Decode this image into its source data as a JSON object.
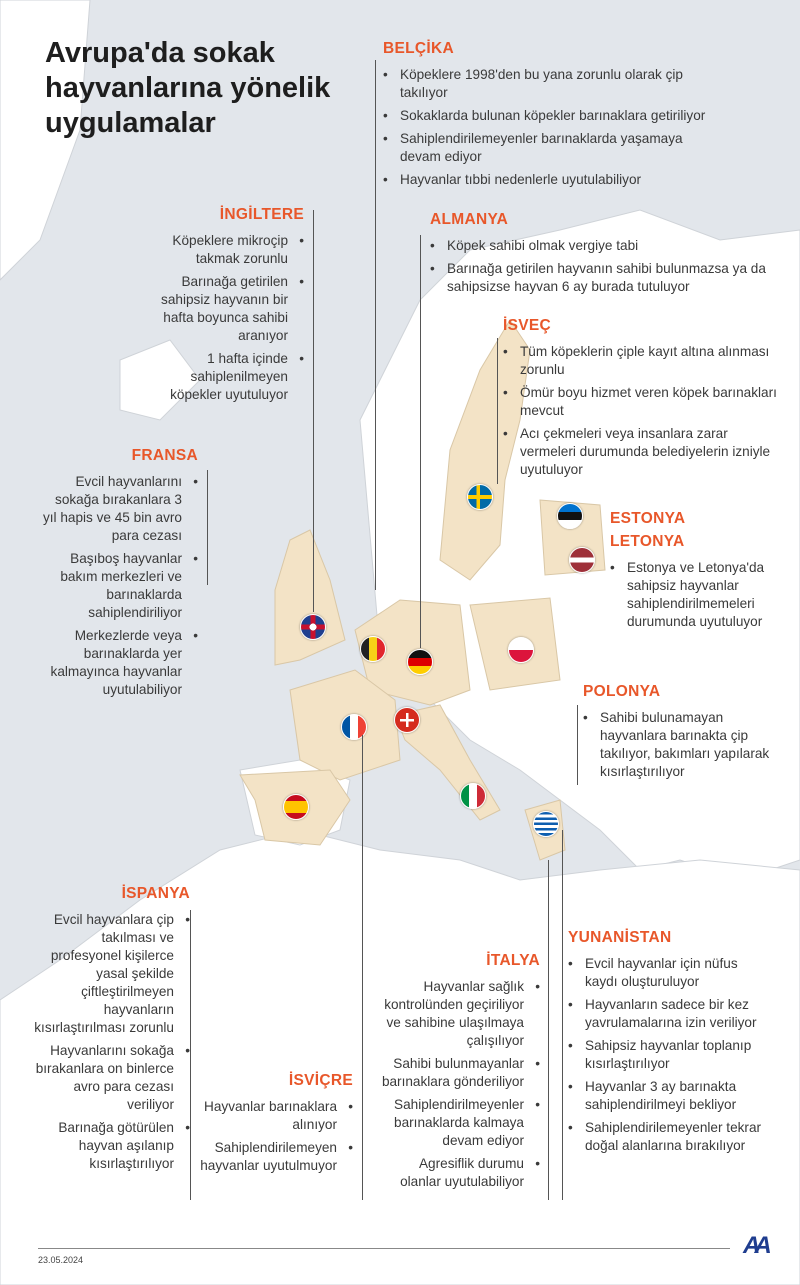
{
  "title": "Avrupa'da sokak hayvanlarına yönelik uygulamalar",
  "colors": {
    "heading": "#e8572a",
    "sea": "#e2e6eb",
    "land": "#ffffff",
    "highlight": "#f3e3c6"
  },
  "countries": [
    {
      "name": "BELÇİKA",
      "flag": "belgium",
      "items": [
        "Köpeklere 1998'den bu yana zorunlu olarak çip takılıyor",
        "Sokaklarda bulunan köpekler barınaklara getiriliyor",
        "Sahiplendirilemeyenler barınaklarda yaşamaya devam ediyor",
        "Hayvanlar tıbbi nedenlerle uyutulabiliyor"
      ]
    },
    {
      "name": "İNGİLTERE",
      "flag": "uk",
      "items": [
        "Köpeklere mikroçip takmak zorunlu",
        "Barınağa getirilen sahipsiz hayvanın bir hafta boyunca sahibi aranıyor",
        "1 hafta içinde sahiplenilmeyen köpekler uyutuluyor"
      ]
    },
    {
      "name": "ALMANYA",
      "flag": "germany",
      "items": [
        "Köpek sahibi olmak vergiye tabi",
        "Barınağa getirilen hayvanın sahibi bulunmazsa ya da sahipsizse hayvan 6 ay burada tutuluyor"
      ]
    },
    {
      "name": "İSVEÇ",
      "flag": "sweden",
      "items": [
        "Tüm köpeklerin çiple kayıt altına alınması zorunlu",
        "Ömür boyu hizmet veren köpek barınakları mevcut",
        "Acı çekmeleri veya insanlara zarar vermeleri durumunda belediyelerin izniyle uyutuluyor"
      ]
    },
    {
      "name": "ESTONYA",
      "flag": "estonia",
      "items": []
    },
    {
      "name": "LETONYA",
      "flag": "latvia",
      "items": [
        "Estonya ve Letonya'da sahipsiz hayvanlar sahiplendirilmemeleri durumunda uyutuluyor"
      ]
    },
    {
      "name": "FRANSA",
      "flag": "france",
      "items": [
        "Evcil hayvanlarını sokağa bırakanlara 3 yıl hapis ve 45 bin avro para cezası",
        "Başıboş hayvanlar bakım merkezleri ve barınaklarda sahiplendiriliyor",
        "Merkezlerde veya barınaklarda yer kalmayınca hayvanlar uyutulabiliyor"
      ]
    },
    {
      "name": "POLONYA",
      "flag": "poland",
      "items": [
        "Sahibi bulunamayan hayvanlara barınakta çip takılıyor, bakımları yapılarak kısırlaştırılıyor"
      ]
    },
    {
      "name": "İSPANYA",
      "flag": "spain",
      "items": [
        "Evcil hayvanlara çip takılması ve profesyonel kişilerce yasal şekilde çiftleştirilmeyen hayvanların kısırlaştırılması zorunlu",
        "Hayvanlarını sokağa bırakanlara on binlerce avro para cezası veriliyor",
        "Barınağa götürülen hayvan aşılanıp kısırlaştırılıyor"
      ]
    },
    {
      "name": "İSVİÇRE",
      "flag": "switzerland",
      "items": [
        "Hayvanlar barınaklara alınıyor",
        "Sahiplendirilemeyen hayvanlar uyutulmuyor"
      ]
    },
    {
      "name": "İTALYA",
      "flag": "italy",
      "items": [
        "Hayvanlar sağlık kontrolünden geçiriliyor ve sahibine ulaşılmaya çalışılıyor",
        "Sahibi bulunmayanlar barınaklara gönderiliyor",
        "Sahiplendirilmeyenler barınaklarda kalmaya devam ediyor",
        "Agresiflik durumu olanlar uyutulabiliyor"
      ]
    },
    {
      "name": "YUNANİSTAN",
      "flag": "greece",
      "items": [
        "Evcil hayvanlar için nüfus kaydı oluşturuluyor",
        "Hayvanların sadece bir kez yavrulamalarına izin veriliyor",
        "Sahipsiz hayvanlar toplanıp kısırlaştırılıyor",
        "Hayvanlar 3 ay barınakta sahiplendirilmeyi bekliyor",
        "Sahiplendirilemeyenler tekrar doğal alanlarına bırakılıyor"
      ]
    }
  ],
  "footer": {
    "date": "23.05.2024",
    "logo": "AA"
  }
}
